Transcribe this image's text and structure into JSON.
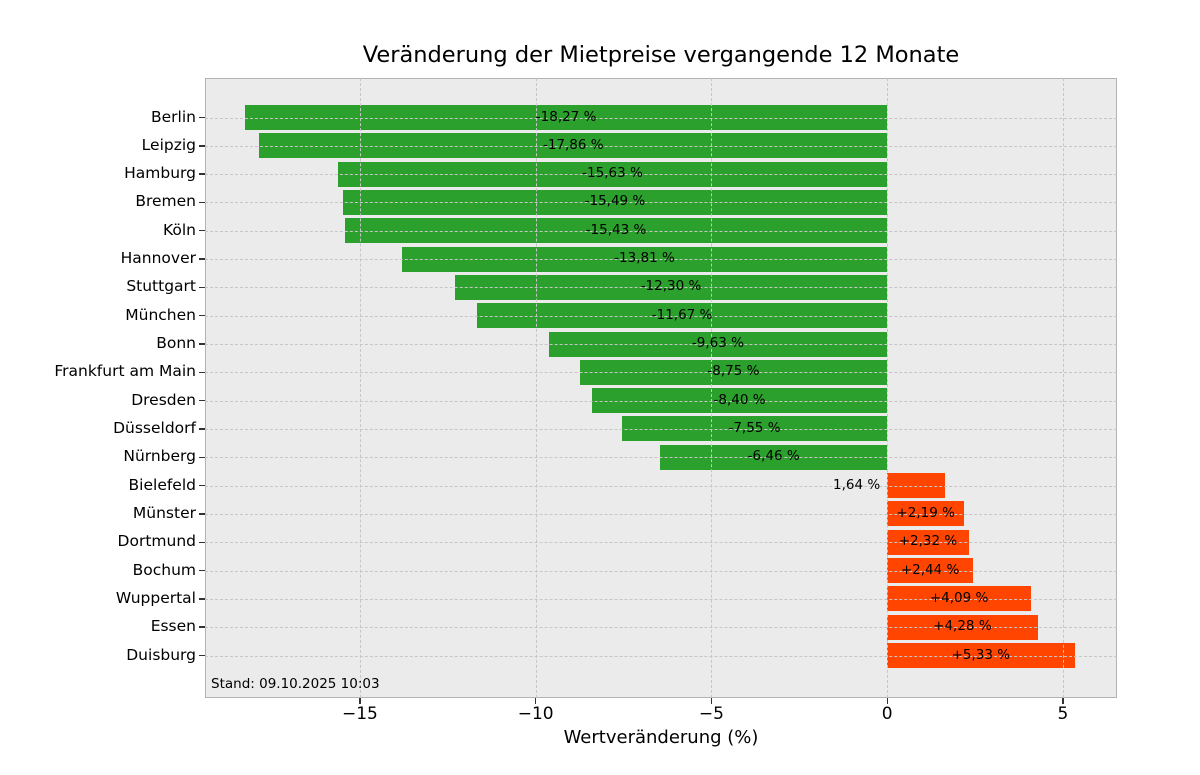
{
  "chart_data": {
    "type": "bar",
    "orientation": "horizontal",
    "title": "Veränderung der Mietpreise vergangende 12 Monate",
    "xlabel": "Wertveränderung (%)",
    "annotation": "Stand: 09.10.2025 10:03",
    "grid": true,
    "legend": "none",
    "xlim": [
      -19.45,
      6.54
    ],
    "xticks": [
      {
        "value": -15,
        "label": "−15"
      },
      {
        "value": -10,
        "label": "−10"
      },
      {
        "value": -5,
        "label": "−5"
      },
      {
        "value": 0,
        "label": "0"
      },
      {
        "value": 5,
        "label": "5"
      }
    ],
    "rows": [
      {
        "city": "Berlin",
        "value": -18.27,
        "label": "-18,27 %"
      },
      {
        "city": "Leipzig",
        "value": -17.86,
        "label": "-17,86 %"
      },
      {
        "city": "Hamburg",
        "value": -15.63,
        "label": "-15,63 %"
      },
      {
        "city": "Bremen",
        "value": -15.49,
        "label": "-15,49 %"
      },
      {
        "city": "Köln",
        "value": -15.43,
        "label": "-15,43 %"
      },
      {
        "city": "Hannover",
        "value": -13.81,
        "label": "-13,81 %"
      },
      {
        "city": "Stuttgart",
        "value": -12.3,
        "label": "-12,30 %"
      },
      {
        "city": "München",
        "value": -11.67,
        "label": "-11,67 %"
      },
      {
        "city": "Bonn",
        "value": -9.63,
        "label": "-9,63 %"
      },
      {
        "city": "Frankfurt am Main",
        "value": -8.75,
        "label": "-8,75 %"
      },
      {
        "city": "Dresden",
        "value": -8.4,
        "label": "-8,40 %"
      },
      {
        "city": "Düsseldorf",
        "value": -7.55,
        "label": "-7,55 %"
      },
      {
        "city": "Nürnberg",
        "value": -6.46,
        "label": "-6,46 %"
      },
      {
        "city": "Bielefeld",
        "value": 1.64,
        "label": "1,64 %",
        "label_outside": true
      },
      {
        "city": "Münster",
        "value": 2.19,
        "label": "+2,19 %"
      },
      {
        "city": "Dortmund",
        "value": 2.32,
        "label": "+2,32 %"
      },
      {
        "city": "Bochum",
        "value": 2.44,
        "label": "+2,44 %"
      },
      {
        "city": "Wuppertal",
        "value": 4.09,
        "label": "+4,09 %"
      },
      {
        "city": "Essen",
        "value": 4.28,
        "label": "+4,28 %"
      },
      {
        "city": "Duisburg",
        "value": 5.33,
        "label": "+5,33 %"
      }
    ],
    "colors": {
      "negative_bar": "#2ca02c",
      "positive_bar": "#ff4500",
      "plot_background": "#ebebeb",
      "figure_background": "#ffffff",
      "grid_line": "#c6c6c6",
      "spine": "#b3b3b3",
      "text": "#000000"
    }
  }
}
